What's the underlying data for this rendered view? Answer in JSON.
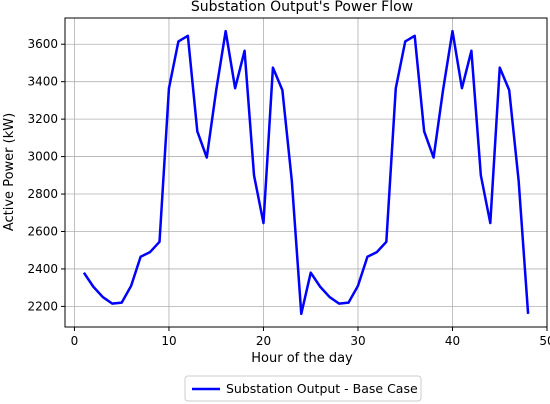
{
  "chart_data": {
    "type": "line",
    "title": "Substation Output's Power Flow",
    "xlabel": "Hour of the day",
    "ylabel": "Active Power (kW)",
    "xlim": [
      -1,
      50
    ],
    "ylim": [
      2090,
      3740
    ],
    "xticks": [
      0,
      10,
      20,
      30,
      40,
      50
    ],
    "yticks": [
      2200,
      2400,
      2600,
      2800,
      3000,
      3200,
      3400,
      3600
    ],
    "grid": true,
    "legend": "bottom-center-outside",
    "series": [
      {
        "name": "Substation Output - Base Case",
        "color": "#0000ff",
        "x": [
          1,
          2,
          3,
          4,
          5,
          6,
          7,
          8,
          9,
          10,
          11,
          12,
          13,
          14,
          15,
          16,
          17,
          18,
          19,
          20,
          21,
          22,
          23,
          24,
          25,
          26,
          27,
          28,
          29,
          30,
          31,
          32,
          33,
          34,
          35,
          36,
          37,
          38,
          39,
          40,
          41,
          42,
          43,
          44,
          45,
          46,
          47,
          48
        ],
        "values": [
          2380,
          2305,
          2250,
          2215,
          2220,
          2310,
          2465,
          2490,
          2545,
          3365,
          3615,
          3645,
          3135,
          2995,
          3355,
          3670,
          3365,
          3565,
          2900,
          2645,
          3475,
          3355,
          2870,
          2160,
          2380,
          2305,
          2250,
          2215,
          2220,
          2310,
          2465,
          2490,
          2545,
          3365,
          3615,
          3645,
          3135,
          2995,
          3355,
          3670,
          3365,
          3565,
          2900,
          2645,
          3475,
          3355,
          2870,
          2160
        ]
      }
    ]
  }
}
